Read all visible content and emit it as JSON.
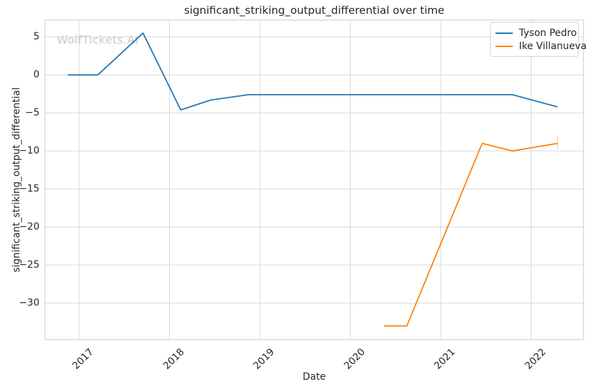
{
  "watermark": "WolfTickets.AI",
  "chart_data": {
    "type": "line",
    "title": "significant_striking_output_differential over time",
    "xlabel": "Date",
    "ylabel": "significant_striking_output_differential",
    "grid": true,
    "legend_position": "upper right",
    "x_ticks": [
      "2017",
      "2018",
      "2019",
      "2020",
      "2021",
      "2022"
    ],
    "y_ticks": [
      5,
      0,
      -5,
      -10,
      -15,
      -20,
      -25,
      -30
    ],
    "x_range_years": [
      2016.62,
      2022.58
    ],
    "y_range": [
      -34.8,
      7.2
    ],
    "series": [
      {
        "name": "Tyson Pedro",
        "color": "#1f77b4",
        "points": [
          [
            "2016-11",
            0.0
          ],
          [
            "2017-03",
            0.0
          ],
          [
            "2017-09",
            5.5
          ],
          [
            "2018-02",
            -4.6
          ],
          [
            "2018-06",
            -3.3
          ],
          [
            "2018-11",
            -2.6
          ],
          [
            "2021-10",
            -2.6
          ],
          [
            "2022-04",
            -4.2
          ]
        ]
      },
      {
        "name": "Ike Villanueva",
        "color": "#ff7f0e",
        "points": [
          [
            "2020-05",
            -33.0
          ],
          [
            "2020-08",
            -33.0
          ],
          [
            "2021-06",
            -9.0
          ],
          [
            "2021-10",
            -10.0
          ],
          [
            "2022-04",
            -9.0
          ]
        ],
        "end_tick": {
          "x": "2022-04",
          "from": -8.0,
          "to": -9.8
        }
      }
    ]
  },
  "legend": {
    "entries": [
      {
        "label": "Tyson Pedro",
        "color": "#1f77b4"
      },
      {
        "label": "Ike Villanueva",
        "color": "#ff7f0e"
      }
    ]
  },
  "style": {
    "grid_color": "#d8d8d8",
    "spine_color": "#d0d0d0",
    "text_color": "#262626"
  }
}
